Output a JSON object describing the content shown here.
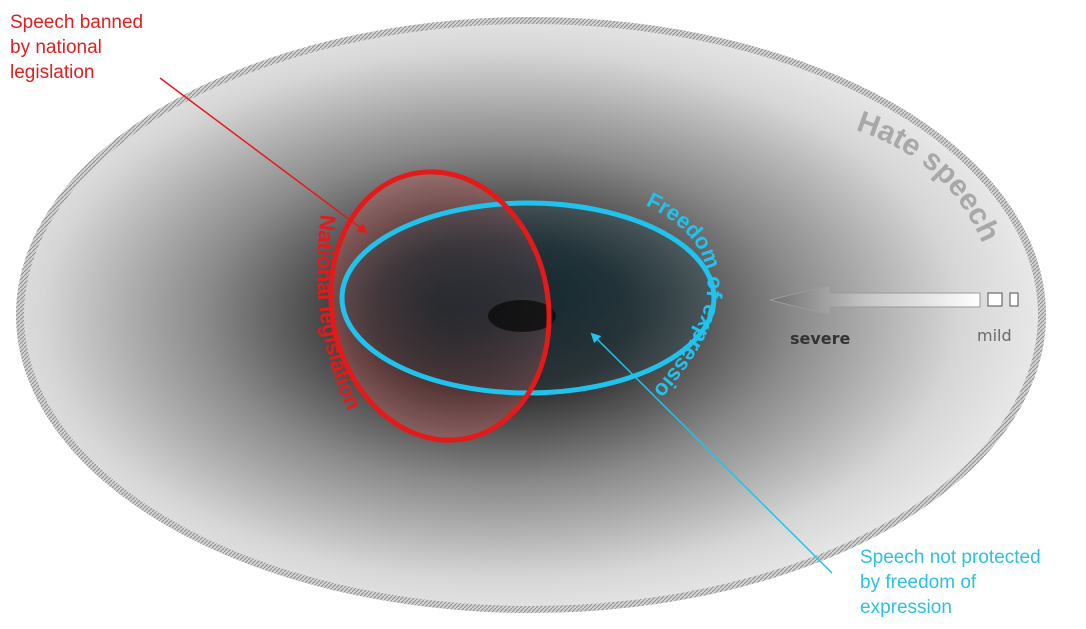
{
  "colors": {
    "red": "#e41a1a",
    "blue": "#1fc3ee",
    "hate_label": "#a8a8a8",
    "red_text": "#e02020",
    "blue_text": "#2fc0e0"
  },
  "labels": {
    "hate_speech": "Hate speech",
    "national_legislation": "National legislation",
    "freedom_of_expression": "Freedom of expression",
    "severe": "severe",
    "mild": "mild"
  },
  "callouts": {
    "banned": [
      "Speech banned",
      "by national",
      "legislation"
    ],
    "not_protected": [
      "Speech not protected",
      "by freedom of",
      "expression"
    ]
  }
}
